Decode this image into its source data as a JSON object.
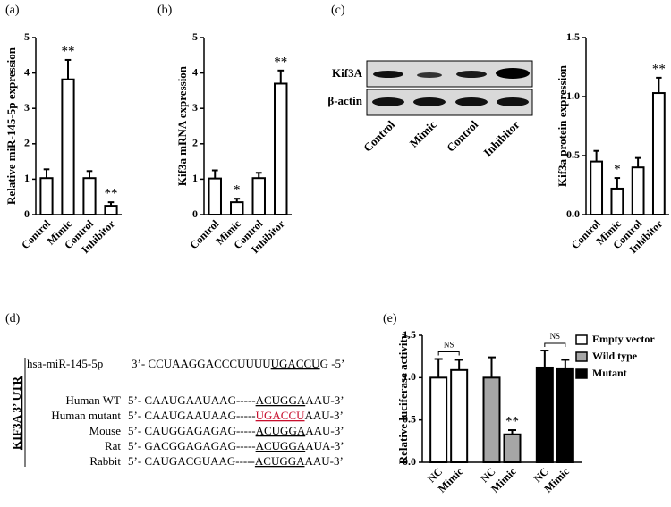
{
  "chart_data": [
    {
      "type": "bar",
      "panel_label": "(a)",
      "ylabel": "Relative miR-145-5p expression",
      "categories": [
        "Control",
        "Mimic",
        "Control",
        "Inhibitor"
      ],
      "values": [
        1.03,
        3.82,
        1.03,
        0.25
      ],
      "errors": [
        0.25,
        0.55,
        0.2,
        0.1
      ],
      "annotations": [
        null,
        "**",
        null,
        "**"
      ],
      "color": "#ffffff",
      "ylim": [
        0,
        5
      ],
      "yticks": [
        0,
        1,
        2,
        3,
        4,
        5
      ]
    },
    {
      "type": "bar",
      "panel_label": "(b)",
      "ylabel": "Kif3a mRNA expression",
      "categories": [
        "Control",
        "Mimic",
        "Control",
        "Inhibitor"
      ],
      "values": [
        1.02,
        0.35,
        1.03,
        3.7
      ],
      "errors": [
        0.23,
        0.1,
        0.15,
        0.37
      ],
      "annotations": [
        null,
        "*",
        null,
        "**"
      ],
      "color": "#ffffff",
      "ylim": [
        0,
        5
      ],
      "yticks": [
        0,
        1,
        2,
        3,
        4,
        5
      ]
    },
    {
      "type": "bar",
      "ylabel": "Kif3a protein expression",
      "categories": [
        "Control",
        "Mimic",
        "Control",
        "Inhibitor"
      ],
      "values": [
        0.45,
        0.22,
        0.4,
        1.03
      ],
      "errors": [
        0.09,
        0.09,
        0.08,
        0.13
      ],
      "annotations": [
        null,
        "*",
        null,
        "**"
      ],
      "color": "#ffffff",
      "ylim": [
        0,
        1.5
      ],
      "yticks": [
        {
          "value": 0,
          "label": "0.0"
        },
        {
          "value": 0.5,
          "label": "0.5"
        },
        {
          "value": 1,
          "label": "1.0"
        },
        {
          "value": 1.5,
          "label": "1.5"
        }
      ]
    },
    {
      "type": "grouped_bar",
      "panel_label": "(e)",
      "ylabel": "Relative luciferase activity",
      "categories": [
        "NC",
        "Mimic"
      ],
      "series": [
        {
          "name": "Empty vector",
          "color": "#ffffff",
          "values": [
            1.0,
            1.09
          ],
          "errors": [
            0.22,
            0.12
          ],
          "annotations": [
            null,
            null
          ],
          "bracket": "NS"
        },
        {
          "name": "Wild type",
          "color": "#a6a6a6",
          "values": [
            1.0,
            0.33
          ],
          "errors": [
            0.24,
            0.05
          ],
          "annotations": [
            null,
            "**"
          ]
        },
        {
          "name": "Mutant",
          "color": "#000000",
          "values": [
            1.12,
            1.11
          ],
          "errors": [
            0.2,
            0.1
          ],
          "annotations": [
            null,
            null
          ],
          "bracket": "NS"
        }
      ],
      "ylim": [
        0,
        1.5
      ],
      "yticks": [
        {
          "value": 0,
          "label": "0.0"
        },
        {
          "value": 0.5,
          "label": "0.5"
        },
        {
          "value": 1,
          "label": "1.0"
        },
        {
          "value": 1.5,
          "label": "1.5"
        }
      ],
      "legend": "upper right"
    }
  ],
  "blot": {
    "panel_label": "(c)",
    "rows": [
      "Kif3A",
      "β-actin"
    ],
    "lanes": [
      "Control",
      "Mimic",
      "Control",
      "Inhibitor"
    ]
  },
  "alignment": {
    "panel_label": "(d)",
    "region": "KIF3A 3’ UTR",
    "rows": [
      {
        "name": "hsa-miR-145-5p",
        "pre": "3’- CCUAAGGACCCUUUU",
        "site": "UGACCU",
        "post": "G -5’"
      },
      {
        "name": "Human WT",
        "pre": "5’- CAAUGAAUAAG-----",
        "site": "ACUGGA",
        "post": "AAU-3’"
      },
      {
        "name": "Human mutant",
        "pre": "5’- CAAUGAAUAAG-----",
        "site": "UGACCU",
        "post": "AAU-3’",
        "site_color": "#c8102e"
      },
      {
        "name": "Mouse",
        "pre": "5’- CAUGGAGAGAG-----",
        "site": "ACUGGA",
        "post": "AAU-3’"
      },
      {
        "name": "Rat",
        "pre": "5’- GACGGAGAGAG-----",
        "site": "ACUGGA",
        "post": "AUA-3’"
      },
      {
        "name": "Rabbit",
        "pre": "5’- CAUGACGUAAG-----",
        "site": "ACUGGA",
        "post": "AAU-3’"
      }
    ]
  }
}
